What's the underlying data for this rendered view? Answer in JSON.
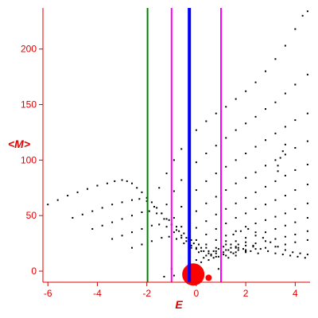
{
  "chart_data": {
    "type": "scatter",
    "xlabel": "E",
    "ylabel": "<M>",
    "xlim": [
      -6.2,
      4.6
    ],
    "ylim": [
      -10,
      237
    ],
    "x_ticks": [
      -6,
      -4,
      -2,
      0,
      2,
      4
    ],
    "x_tick_labels": [
      "-6",
      "-4",
      "-2",
      "0",
      "2",
      "4"
    ],
    "y_ticks": [
      0,
      50,
      100,
      150,
      200
    ],
    "y_tick_labels": [
      "0",
      "50",
      "100",
      "150",
      "200"
    ],
    "grid": false,
    "colors": {
      "axis": "#e00000",
      "points": "#000000",
      "blob": "#ff0000",
      "line_green": "#008000",
      "line_magenta": "#ff00ff",
      "line_blue": "#0000ff"
    },
    "vertical_lines": [
      {
        "x": -1.97,
        "color": "#008000"
      },
      {
        "x": -1.0,
        "color": "#ff00ff"
      },
      {
        "x": 1.0,
        "color": "#ff00ff"
      },
      {
        "x": -0.28,
        "color": "#0000ff"
      }
    ],
    "red_points": [
      {
        "x": -0.12,
        "y": -3,
        "r_label": "large"
      },
      {
        "x": 0.5,
        "y": -6,
        "r_label": "small"
      },
      {
        "x": -0.3,
        "y": 29,
        "r_label": "tiny"
      }
    ],
    "series": [
      {
        "points": [
          [
            -6.0,
            60
          ],
          [
            -5.6,
            64
          ],
          [
            -5.2,
            68
          ],
          [
            -4.8,
            71
          ],
          [
            -4.4,
            74
          ],
          [
            -4.0,
            77
          ],
          [
            -3.6,
            79
          ],
          [
            -3.3,
            81
          ],
          [
            -3.0,
            82
          ],
          [
            -2.8,
            81
          ],
          [
            -2.6,
            79
          ],
          [
            -2.4,
            75
          ],
          [
            -2.2,
            71
          ],
          [
            -2.0,
            66
          ],
          [
            -1.8,
            62
          ],
          [
            -1.6,
            57
          ],
          [
            -1.4,
            52
          ],
          [
            -1.2,
            47
          ],
          [
            -1.0,
            42
          ],
          [
            -0.8,
            37
          ],
          [
            -0.6,
            32
          ],
          [
            -0.4,
            27
          ],
          [
            -0.2,
            23
          ],
          [
            0.0,
            20
          ],
          [
            0.2,
            18
          ],
          [
            0.5,
            16
          ],
          [
            0.8,
            18
          ],
          [
            1.1,
            22
          ],
          [
            1.4,
            24
          ],
          [
            1.7,
            21
          ],
          [
            2.0,
            19
          ],
          [
            2.3,
            22
          ]
        ]
      },
      {
        "points": [
          [
            -5.0,
            48
          ],
          [
            -4.6,
            51
          ],
          [
            -4.2,
            54
          ],
          [
            -3.8,
            57
          ],
          [
            -3.4,
            60
          ],
          [
            -3.0,
            62
          ],
          [
            -2.6,
            64
          ],
          [
            -2.3,
            65
          ],
          [
            -2.0,
            63
          ],
          [
            -1.7,
            58
          ],
          [
            -1.4,
            52
          ],
          [
            -1.1,
            46
          ],
          [
            -0.8,
            40
          ],
          [
            -0.5,
            34
          ],
          [
            -0.2,
            28
          ],
          [
            0.1,
            24
          ],
          [
            0.4,
            21
          ],
          [
            0.7,
            18
          ],
          [
            1.0,
            17
          ],
          [
            1.3,
            19
          ],
          [
            1.6,
            22
          ],
          [
            1.9,
            20
          ],
          [
            2.2,
            18
          ],
          [
            2.5,
            16
          ]
        ]
      },
      {
        "points": [
          [
            -4.2,
            38
          ],
          [
            -3.8,
            41
          ],
          [
            -3.4,
            44
          ],
          [
            -3.0,
            47
          ],
          [
            -2.6,
            50
          ],
          [
            -2.2,
            53
          ],
          [
            -1.9,
            54
          ],
          [
            -1.6,
            52
          ],
          [
            -1.3,
            47
          ],
          [
            -1.0,
            42
          ],
          [
            -0.7,
            36
          ],
          [
            -0.4,
            30
          ],
          [
            -0.1,
            25
          ],
          [
            0.2,
            21
          ],
          [
            0.5,
            18
          ],
          [
            0.8,
            16
          ],
          [
            1.1,
            15
          ],
          [
            1.4,
            17
          ],
          [
            1.7,
            19
          ],
          [
            2.0,
            17
          ]
        ]
      },
      {
        "points": [
          [
            -3.4,
            29
          ],
          [
            -3.0,
            32
          ],
          [
            -2.6,
            35
          ],
          [
            -2.2,
            38
          ],
          [
            -1.8,
            41
          ],
          [
            -1.5,
            42
          ],
          [
            -1.2,
            40
          ],
          [
            -0.9,
            35
          ],
          [
            -0.6,
            30
          ],
          [
            -0.3,
            25
          ],
          [
            0.0,
            21
          ],
          [
            0.3,
            18
          ],
          [
            0.6,
            15
          ],
          [
            0.9,
            13
          ],
          [
            1.2,
            14
          ],
          [
            1.5,
            16
          ]
        ]
      },
      {
        "points": [
          [
            -2.6,
            21
          ],
          [
            -2.2,
            24
          ],
          [
            -1.8,
            27
          ],
          [
            -1.4,
            30
          ],
          [
            -1.1,
            31
          ],
          [
            -0.8,
            29
          ],
          [
            -0.5,
            25
          ],
          [
            -0.2,
            21
          ],
          [
            0.1,
            17
          ],
          [
            0.4,
            14
          ],
          [
            0.7,
            12
          ],
          [
            1.0,
            11
          ],
          [
            1.3,
            12
          ],
          [
            1.6,
            14
          ]
        ]
      },
      {
        "points": [
          [
            -1.5,
            75
          ],
          [
            -1.2,
            88
          ],
          [
            -0.9,
            100
          ],
          [
            -0.6,
            110
          ],
          [
            -0.3,
            119
          ],
          [
            0.0,
            127
          ],
          [
            0.4,
            135
          ],
          [
            0.8,
            142
          ],
          [
            1.2,
            148
          ],
          [
            1.6,
            155
          ],
          [
            2.0,
            162
          ],
          [
            2.4,
            170
          ],
          [
            2.8,
            180
          ],
          [
            3.2,
            191
          ],
          [
            3.6,
            203
          ],
          [
            4.0,
            218
          ],
          [
            4.3,
            230
          ],
          [
            4.5,
            234
          ]
        ]
      },
      {
        "points": [
          [
            -1.2,
            60
          ],
          [
            -0.9,
            72
          ],
          [
            -0.6,
            82
          ],
          [
            -0.3,
            91
          ],
          [
            0.0,
            98
          ],
          [
            0.4,
            106
          ],
          [
            0.8,
            113
          ],
          [
            1.2,
            120
          ],
          [
            1.6,
            127
          ],
          [
            2.0,
            133
          ],
          [
            2.4,
            139
          ],
          [
            2.8,
            146
          ],
          [
            3.2,
            152
          ],
          [
            3.6,
            160
          ],
          [
            4.0,
            168
          ],
          [
            4.5,
            177
          ]
        ]
      },
      {
        "points": [
          [
            -0.9,
            48
          ],
          [
            -0.6,
            58
          ],
          [
            -0.3,
            66
          ],
          [
            0.0,
            73
          ],
          [
            0.4,
            81
          ],
          [
            0.8,
            88
          ],
          [
            1.2,
            94
          ],
          [
            1.6,
            100
          ],
          [
            2.0,
            106
          ],
          [
            2.4,
            112
          ],
          [
            2.8,
            118
          ],
          [
            3.2,
            124
          ],
          [
            3.6,
            130
          ],
          [
            4.0,
            136
          ],
          [
            4.5,
            142
          ]
        ]
      },
      {
        "points": [
          [
            -0.6,
            40
          ],
          [
            -0.3,
            47
          ],
          [
            0.0,
            54
          ],
          [
            0.4,
            61
          ],
          [
            0.8,
            67
          ],
          [
            1.2,
            73
          ],
          [
            1.6,
            79
          ],
          [
            2.0,
            84
          ],
          [
            2.4,
            89
          ],
          [
            2.8,
            95
          ],
          [
            3.2,
            100
          ],
          [
            3.6,
            105
          ],
          [
            4.0,
            111
          ],
          [
            4.5,
            117
          ]
        ]
      },
      {
        "points": [
          [
            -0.3,
            34
          ],
          [
            0.0,
            39
          ],
          [
            0.4,
            45
          ],
          [
            0.8,
            51
          ],
          [
            1.2,
            56
          ],
          [
            1.6,
            61
          ],
          [
            2.0,
            66
          ],
          [
            2.4,
            71
          ],
          [
            2.8,
            76
          ],
          [
            3.2,
            81
          ],
          [
            3.6,
            86
          ],
          [
            4.0,
            91
          ],
          [
            4.5,
            96
          ]
        ]
      },
      {
        "points": [
          [
            0.0,
            28
          ],
          [
            0.4,
            33
          ],
          [
            0.8,
            38
          ],
          [
            1.2,
            43
          ],
          [
            1.6,
            48
          ],
          [
            2.0,
            52
          ],
          [
            2.4,
            56
          ],
          [
            2.8,
            60
          ],
          [
            3.2,
            64
          ],
          [
            3.6,
            68
          ],
          [
            4.0,
            73
          ],
          [
            4.5,
            78
          ]
        ]
      },
      {
        "points": [
          [
            0.4,
            24
          ],
          [
            0.8,
            28
          ],
          [
            1.2,
            32
          ],
          [
            1.6,
            36
          ],
          [
            2.0,
            40
          ],
          [
            2.4,
            43
          ],
          [
            2.8,
            46
          ],
          [
            3.2,
            49
          ],
          [
            3.6,
            52
          ],
          [
            4.0,
            56
          ],
          [
            4.5,
            61
          ]
        ]
      },
      {
        "points": [
          [
            0.8,
            21
          ],
          [
            1.2,
            24
          ],
          [
            1.6,
            27
          ],
          [
            2.0,
            30
          ],
          [
            2.4,
            32
          ],
          [
            2.8,
            35
          ],
          [
            3.2,
            38
          ],
          [
            3.6,
            41
          ],
          [
            4.0,
            44
          ],
          [
            4.5,
            48
          ]
        ]
      },
      {
        "points": [
          [
            1.2,
            19
          ],
          [
            1.6,
            21
          ],
          [
            2.0,
            23
          ],
          [
            2.4,
            25
          ],
          [
            2.8,
            27
          ],
          [
            3.2,
            29
          ],
          [
            3.6,
            31
          ],
          [
            4.0,
            33
          ],
          [
            4.5,
            36
          ]
        ]
      },
      {
        "points": [
          [
            1.6,
            17
          ],
          [
            2.0,
            18
          ],
          [
            2.4,
            20
          ],
          [
            2.8,
            21
          ],
          [
            3.2,
            22
          ],
          [
            3.6,
            24
          ],
          [
            4.0,
            26
          ],
          [
            4.5,
            28
          ]
        ]
      },
      {
        "points": [
          [
            0.0,
            10
          ],
          [
            0.3,
            12
          ],
          [
            0.6,
            14
          ],
          [
            0.9,
            20
          ],
          [
            1.2,
            27
          ],
          [
            1.5,
            33
          ],
          [
            1.8,
            36
          ],
          [
            2.1,
            38
          ],
          [
            2.4,
            35
          ],
          [
            2.7,
            30
          ],
          [
            3.0,
            26
          ],
          [
            3.3,
            22
          ],
          [
            3.6,
            19
          ],
          [
            3.9,
            17
          ],
          [
            4.2,
            16
          ],
          [
            4.5,
            15
          ]
        ]
      },
      {
        "points": [
          [
            0.2,
            8
          ],
          [
            0.5,
            10
          ],
          [
            0.8,
            13
          ],
          [
            1.1,
            17
          ],
          [
            1.4,
            21
          ],
          [
            1.7,
            24
          ],
          [
            2.0,
            26
          ],
          [
            2.3,
            23
          ],
          [
            2.6,
            20
          ],
          [
            2.9,
            18
          ],
          [
            3.2,
            16
          ],
          [
            3.5,
            15
          ],
          [
            3.8,
            14
          ],
          [
            4.1,
            13
          ],
          [
            4.4,
            12
          ]
        ]
      },
      {
        "points": [
          [
            3.3,
            95
          ],
          [
            3.4,
            102
          ],
          [
            3.5,
            108
          ],
          [
            3.6,
            114
          ],
          [
            3.3,
            90
          ],
          [
            -1.0,
            2
          ],
          [
            -1.3,
            -5
          ],
          [
            -0.9,
            -4
          ],
          [
            1.0,
            -3
          ],
          [
            0.9,
            2
          ]
        ]
      }
    ]
  }
}
